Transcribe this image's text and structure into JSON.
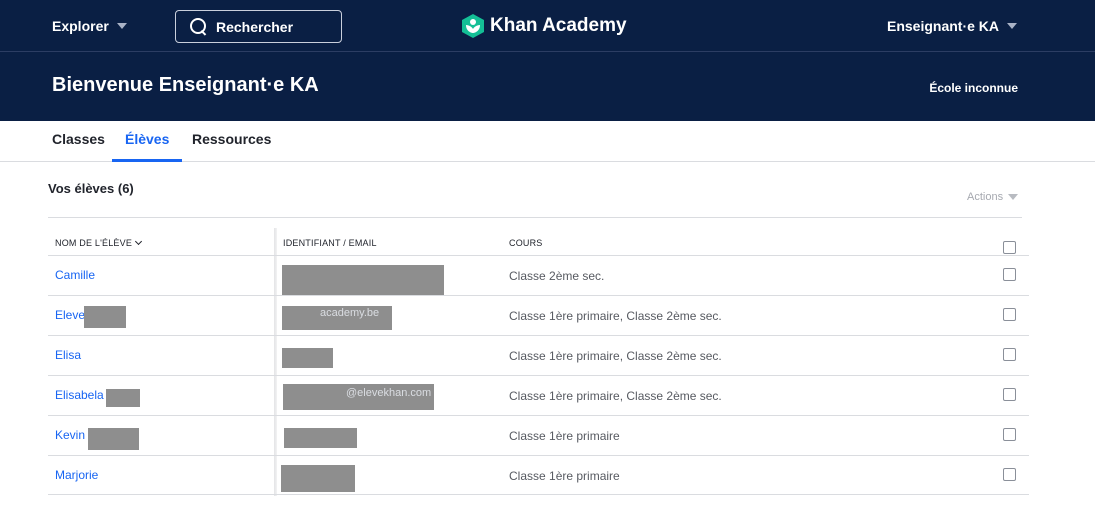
{
  "nav": {
    "explore_label": "Explorer",
    "search_label": "Rechercher",
    "logo_text": "Khan Academy",
    "user_label": "Enseignant·e KA"
  },
  "banner": {
    "welcome": "Bienvenue Enseignant·e KA",
    "school": "École inconnue"
  },
  "tabs": [
    {
      "label": "Classes",
      "active": false
    },
    {
      "label": "Élèves",
      "active": true
    },
    {
      "label": "Ressources",
      "active": false
    }
  ],
  "students": {
    "title": "Vos élèves (6)",
    "actions_label": "Actions",
    "columns": {
      "name": "NOM DE L'ÉLÈVE",
      "ident": "IDENTIFIANT / EMAIL",
      "courses": "COURS"
    },
    "rows": [
      {
        "name": "Camille",
        "ident": "",
        "courses": "Classe 2ème sec."
      },
      {
        "name": "Eleve",
        "ident": "academy.be",
        "courses": "Classe 1ère primaire, Classe 2ème sec."
      },
      {
        "name": "Elisa",
        "ident": "",
        "courses": "Classe 1ère primaire, Classe 2ème sec."
      },
      {
        "name": "Elisabela",
        "ident": "@elevekhan.com",
        "courses": "Classe 1ère primaire, Classe 2ème sec."
      },
      {
        "name": "Kevin",
        "ident": "",
        "courses": "Classe 1ère primaire"
      },
      {
        "name": "Marjorie",
        "ident": "",
        "courses": "Classe 1ère primaire"
      }
    ]
  },
  "colors": {
    "navy": "#0a1f44",
    "link_blue": "#1865f2",
    "logo_green": "#14bf96"
  },
  "icons": {
    "search": "search-icon",
    "logo": "khan-logo-icon",
    "caret": "caret-down-icon"
  }
}
